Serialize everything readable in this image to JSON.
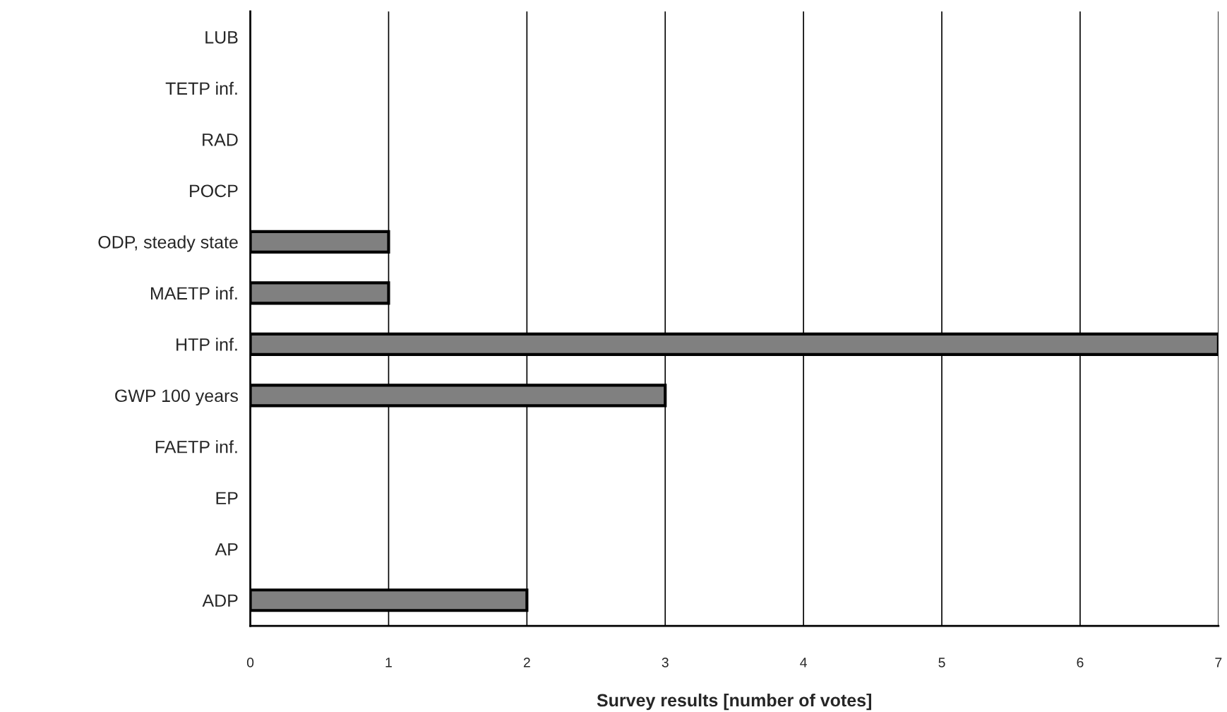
{
  "chart_data": {
    "type": "bar",
    "orientation": "horizontal",
    "xlabel": "Survey results [number of votes]",
    "categories": [
      "LUB",
      "TETP inf.",
      "RAD",
      "POCP",
      "ODP, steady state",
      "MAETP inf.",
      "HTP inf.",
      "GWP 100 years",
      "FAETP inf.",
      "EP",
      "AP",
      "ADP"
    ],
    "values": [
      0,
      0,
      0,
      0,
      1,
      1,
      7,
      3,
      0,
      0,
      0,
      2
    ],
    "color": "#808080",
    "xlim": [
      0,
      7
    ],
    "xticks": [
      0,
      1,
      2,
      3,
      4,
      5,
      6,
      7
    ],
    "grid": "x",
    "legend": false
  }
}
